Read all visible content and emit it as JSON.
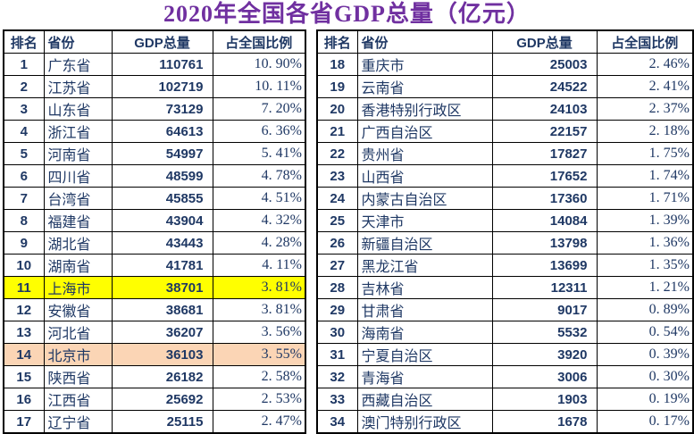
{
  "title": "2020年全国各省GDP总量（亿元）",
  "colors": {
    "title": "#7030A0",
    "text": "#1F3864",
    "border": "#000000",
    "highlight_yellow": "#FFFF00",
    "highlight_peach": "#FBD5B5",
    "background": "#FFFFFF"
  },
  "columns": [
    "排名",
    "省份",
    "GDP总量",
    "占全国比例"
  ],
  "left_table": {
    "rows": [
      {
        "rank": "1",
        "province": "广东省",
        "gdp": "110761",
        "share": "10. 90%",
        "highlight": ""
      },
      {
        "rank": "2",
        "province": "江苏省",
        "gdp": "102719",
        "share": "10. 11%",
        "highlight": ""
      },
      {
        "rank": "3",
        "province": "山东省",
        "gdp": "73129",
        "share": "7. 20%",
        "highlight": ""
      },
      {
        "rank": "4",
        "province": "浙江省",
        "gdp": "64613",
        "share": "6. 36%",
        "highlight": ""
      },
      {
        "rank": "5",
        "province": "河南省",
        "gdp": "54997",
        "share": "5. 41%",
        "highlight": ""
      },
      {
        "rank": "6",
        "province": "四川省",
        "gdp": "48599",
        "share": "4. 78%",
        "highlight": ""
      },
      {
        "rank": "7",
        "province": "台湾省",
        "gdp": "45855",
        "share": "4. 51%",
        "highlight": ""
      },
      {
        "rank": "8",
        "province": "福建省",
        "gdp": "43904",
        "share": "4. 32%",
        "highlight": ""
      },
      {
        "rank": "9",
        "province": "湖北省",
        "gdp": "43443",
        "share": "4. 28%",
        "highlight": ""
      },
      {
        "rank": "10",
        "province": "湖南省",
        "gdp": "41781",
        "share": "4. 11%",
        "highlight": ""
      },
      {
        "rank": "11",
        "province": "上海市",
        "gdp": "38701",
        "share": "3. 81%",
        "highlight": "#FFFF00"
      },
      {
        "rank": "12",
        "province": "安徽省",
        "gdp": "38681",
        "share": "3. 81%",
        "highlight": ""
      },
      {
        "rank": "13",
        "province": "河北省",
        "gdp": "36207",
        "share": "3. 56%",
        "highlight": ""
      },
      {
        "rank": "14",
        "province": "北京市",
        "gdp": "36103",
        "share": "3. 55%",
        "highlight": "#FBD5B5"
      },
      {
        "rank": "15",
        "province": "陕西省",
        "gdp": "26182",
        "share": "2. 58%",
        "highlight": ""
      },
      {
        "rank": "16",
        "province": "江西省",
        "gdp": "25692",
        "share": "2. 53%",
        "highlight": ""
      },
      {
        "rank": "17",
        "province": "辽宁省",
        "gdp": "25115",
        "share": "2. 47%",
        "highlight": ""
      }
    ]
  },
  "right_table": {
    "rows": [
      {
        "rank": "18",
        "province": "重庆市",
        "gdp": "25003",
        "share": "2. 46%",
        "highlight": ""
      },
      {
        "rank": "19",
        "province": "云南省",
        "gdp": "24522",
        "share": "2. 41%",
        "highlight": ""
      },
      {
        "rank": "20",
        "province": "香港特别行政区",
        "gdp": "24103",
        "share": "2. 37%",
        "highlight": ""
      },
      {
        "rank": "21",
        "province": "广西自治区",
        "gdp": "22157",
        "share": "2. 18%",
        "highlight": ""
      },
      {
        "rank": "22",
        "province": "贵州省",
        "gdp": "17827",
        "share": "1. 75%",
        "highlight": ""
      },
      {
        "rank": "23",
        "province": "山西省",
        "gdp": "17652",
        "share": "1. 74%",
        "highlight": ""
      },
      {
        "rank": "24",
        "province": "内蒙古自治区",
        "gdp": "17360",
        "share": "1. 71%",
        "highlight": ""
      },
      {
        "rank": "25",
        "province": "天津市",
        "gdp": "14084",
        "share": "1. 39%",
        "highlight": ""
      },
      {
        "rank": "26",
        "province": "新疆自治区",
        "gdp": "13798",
        "share": "1. 36%",
        "highlight": ""
      },
      {
        "rank": "27",
        "province": "黑龙江省",
        "gdp": "13699",
        "share": "1. 35%",
        "highlight": ""
      },
      {
        "rank": "28",
        "province": "吉林省",
        "gdp": "12311",
        "share": "1. 21%",
        "highlight": ""
      },
      {
        "rank": "29",
        "province": "甘肃省",
        "gdp": "9017",
        "share": "0. 89%",
        "highlight": ""
      },
      {
        "rank": "30",
        "province": "海南省",
        "gdp": "5532",
        "share": "0. 54%",
        "highlight": ""
      },
      {
        "rank": "31",
        "province": "宁夏自治区",
        "gdp": "3920",
        "share": "0. 39%",
        "highlight": ""
      },
      {
        "rank": "32",
        "province": "青海省",
        "gdp": "3006",
        "share": "0. 30%",
        "highlight": ""
      },
      {
        "rank": "33",
        "province": "西藏自治区",
        "gdp": "1903",
        "share": "0. 19%",
        "highlight": ""
      },
      {
        "rank": "34",
        "province": "澳门特别行政区",
        "gdp": "1678",
        "share": "0. 17%",
        "highlight": ""
      }
    ]
  }
}
